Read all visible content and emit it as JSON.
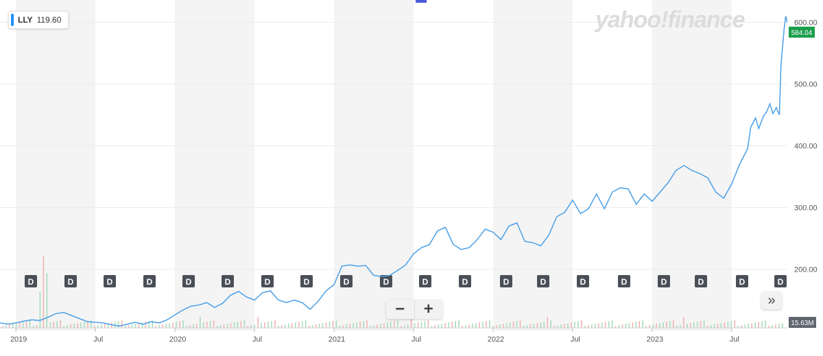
{
  "ticker": {
    "symbol": "LLY",
    "value": "119.60"
  },
  "brand": "yahoo!finance",
  "current_price_label": "584.04",
  "volume_label": "15.63M",
  "zoom": {
    "minus": "−",
    "plus": "+"
  },
  "forward_icon": "»",
  "event_marker": "D",
  "colors": {
    "line": "#4a9fe8",
    "current_tag": "#1a9f4c",
    "vol_up": "#a8dcbf",
    "vol_down": "#f3b3b3",
    "band": "#f4f4f4"
  },
  "chart_data": {
    "type": "line",
    "x_tick_labels": [
      "2019",
      "Jul",
      "2020",
      "Jul",
      "2021",
      "Jul",
      "2022",
      "Jul",
      "2023",
      "Jul"
    ],
    "y_tick_labels": [
      "600.00",
      "500.00",
      "400.00",
      "300.00",
      "200.00"
    ],
    "ylim": [
      105,
      625
    ],
    "x_start": 2018.9,
    "x_end": 2023.85,
    "series": [
      {
        "values": [
          [
            2018.9,
            113
          ],
          [
            2018.95,
            111
          ],
          [
            2019.0,
            113
          ],
          [
            2019.05,
            116
          ],
          [
            2019.1,
            118
          ],
          [
            2019.15,
            117
          ],
          [
            2019.2,
            122
          ],
          [
            2019.25,
            128
          ],
          [
            2019.3,
            130
          ],
          [
            2019.35,
            125
          ],
          [
            2019.4,
            120
          ],
          [
            2019.45,
            115
          ],
          [
            2019.5,
            114
          ],
          [
            2019.55,
            113
          ],
          [
            2019.6,
            110
          ],
          [
            2019.65,
            108
          ],
          [
            2019.7,
            111
          ],
          [
            2019.75,
            114
          ],
          [
            2019.8,
            111
          ],
          [
            2019.85,
            115
          ],
          [
            2019.9,
            113
          ],
          [
            2019.95,
            118
          ],
          [
            2020.0,
            126
          ],
          [
            2020.05,
            134
          ],
          [
            2020.1,
            140
          ],
          [
            2020.15,
            142
          ],
          [
            2020.2,
            146
          ],
          [
            2020.25,
            138
          ],
          [
            2020.3,
            145
          ],
          [
            2020.35,
            158
          ],
          [
            2020.4,
            164
          ],
          [
            2020.45,
            155
          ],
          [
            2020.5,
            150
          ],
          [
            2020.55,
            162
          ],
          [
            2020.6,
            165
          ],
          [
            2020.65,
            150
          ],
          [
            2020.7,
            146
          ],
          [
            2020.75,
            150
          ],
          [
            2020.8,
            146
          ],
          [
            2020.85,
            135
          ],
          [
            2020.9,
            148
          ],
          [
            2020.95,
            165
          ],
          [
            2021.0,
            175
          ],
          [
            2021.05,
            205
          ],
          [
            2021.1,
            207
          ],
          [
            2021.15,
            205
          ],
          [
            2021.2,
            206
          ],
          [
            2021.25,
            190
          ],
          [
            2021.3,
            188
          ],
          [
            2021.35,
            190
          ],
          [
            2021.4,
            198
          ],
          [
            2021.45,
            207
          ],
          [
            2021.5,
            225
          ],
          [
            2021.55,
            235
          ],
          [
            2021.6,
            240
          ],
          [
            2021.65,
            262
          ],
          [
            2021.7,
            268
          ],
          [
            2021.75,
            240
          ],
          [
            2021.8,
            232
          ],
          [
            2021.85,
            235
          ],
          [
            2021.9,
            248
          ],
          [
            2021.95,
            265
          ],
          [
            2022.0,
            260
          ],
          [
            2022.05,
            248
          ],
          [
            2022.1,
            270
          ],
          [
            2022.15,
            275
          ],
          [
            2022.2,
            245
          ],
          [
            2022.25,
            243
          ],
          [
            2022.3,
            238
          ],
          [
            2022.35,
            255
          ],
          [
            2022.4,
            285
          ],
          [
            2022.45,
            292
          ],
          [
            2022.5,
            312
          ],
          [
            2022.55,
            290
          ],
          [
            2022.6,
            298
          ],
          [
            2022.65,
            322
          ],
          [
            2022.7,
            298
          ],
          [
            2022.75,
            325
          ],
          [
            2022.8,
            332
          ],
          [
            2022.85,
            330
          ],
          [
            2022.9,
            305
          ],
          [
            2022.95,
            322
          ],
          [
            2023.0,
            310
          ],
          [
            2023.05,
            325
          ],
          [
            2023.1,
            340
          ],
          [
            2023.15,
            360
          ],
          [
            2023.2,
            368
          ],
          [
            2023.25,
            360
          ],
          [
            2023.3,
            355
          ],
          [
            2023.35,
            348
          ],
          [
            2023.4,
            325
          ],
          [
            2023.45,
            315
          ],
          [
            2023.5,
            338
          ],
          [
            2023.55,
            370
          ],
          [
            2023.6,
            395
          ],
          [
            2023.62,
            430
          ],
          [
            2023.65,
            445
          ],
          [
            2023.67,
            428
          ],
          [
            2023.7,
            448
          ],
          [
            2023.72,
            455
          ],
          [
            2023.74,
            468
          ],
          [
            2023.76,
            452
          ],
          [
            2023.78,
            462
          ],
          [
            2023.8,
            450
          ],
          [
            2023.81,
            530
          ],
          [
            2023.82,
            560
          ],
          [
            2023.83,
            590
          ],
          [
            2023.84,
            610
          ],
          [
            2023.85,
            600
          ]
        ]
      }
    ],
    "grid": true
  }
}
